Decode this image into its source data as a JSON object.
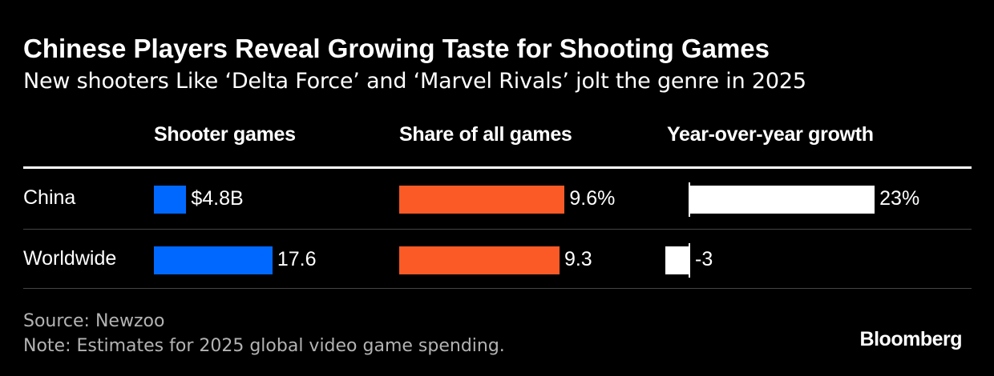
{
  "title": "Chinese Players Reveal Growing Taste for Shooting Games",
  "subtitle": "New shooters Like ‘Delta Force’ and ‘Marvel Rivals’ jolt the genre in 2025",
  "source": "Source: Newzoo",
  "note": "Note: Estimates for 2025 global video game spending.",
  "logo": "Bloomberg",
  "colors": {
    "shooter": "#0068ff",
    "share": "#fb5a27",
    "growth": "#ffffff",
    "background": "#000000"
  },
  "chart_data": {
    "type": "table",
    "categories": [
      "China",
      "Worldwide"
    ],
    "columns": [
      {
        "header": "Shooter games",
        "values": [
          4.8,
          17.6
        ],
        "labels": [
          "$4.8B",
          "17.6"
        ],
        "color": "#0068ff"
      },
      {
        "header": "Share of all games",
        "values": [
          9.6,
          9.3
        ],
        "labels": [
          "9.6%",
          "9.3"
        ],
        "color": "#fb5a27"
      },
      {
        "header": "Year-over-year growth",
        "values": [
          23,
          -3
        ],
        "labels": [
          "23%",
          "-3"
        ],
        "color": "#ffffff"
      }
    ]
  }
}
